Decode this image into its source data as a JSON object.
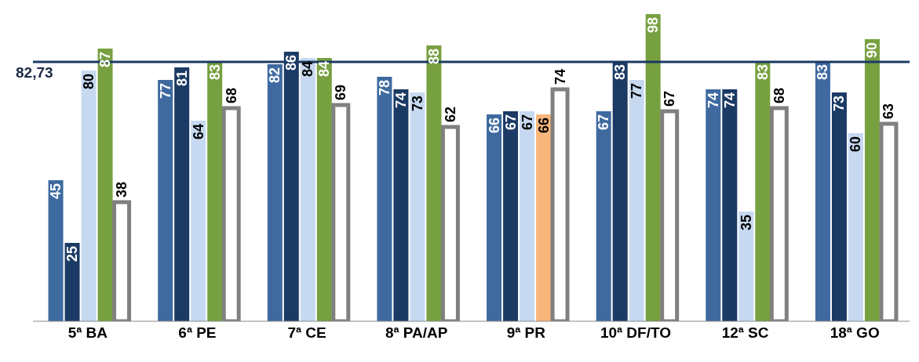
{
  "chart_data": {
    "type": "bar",
    "categories": [
      "5ª BA",
      "6ª PE",
      "7ª CE",
      "8ª PA/AP",
      "9ª PR",
      "10ª DF/TO",
      "12ª SC",
      "18ª GO"
    ],
    "series": [
      {
        "color": "#3e6aa0",
        "values": [
          45,
          77,
          82,
          78,
          66,
          67,
          74,
          83
        ]
      },
      {
        "color": "#1b3a64",
        "values": [
          25,
          81,
          86,
          74,
          67,
          83,
          74,
          73
        ]
      },
      {
        "color": "#c6d9f1",
        "values": [
          80,
          64,
          84,
          73,
          67,
          77,
          35,
          60
        ]
      },
      {
        "color": "#77a040",
        "colors": [
          "#77a040",
          "#77a040",
          "#77a040",
          "#77a040",
          "#fab57a",
          "#77a040",
          "#77a040",
          "#77a040"
        ],
        "values": [
          87,
          83,
          84,
          88,
          66,
          98,
          83,
          90
        ]
      },
      {
        "color": "#808080",
        "values": [
          38,
          68,
          69,
          62,
          74,
          67,
          68,
          63
        ]
      }
    ],
    "tick_labels": "x",
    "data_labels": true,
    "ref_lines": [
      {
        "axis": "y",
        "value": 82.73,
        "label": "82,73",
        "color": "#1b3a64"
      }
    ]
  }
}
